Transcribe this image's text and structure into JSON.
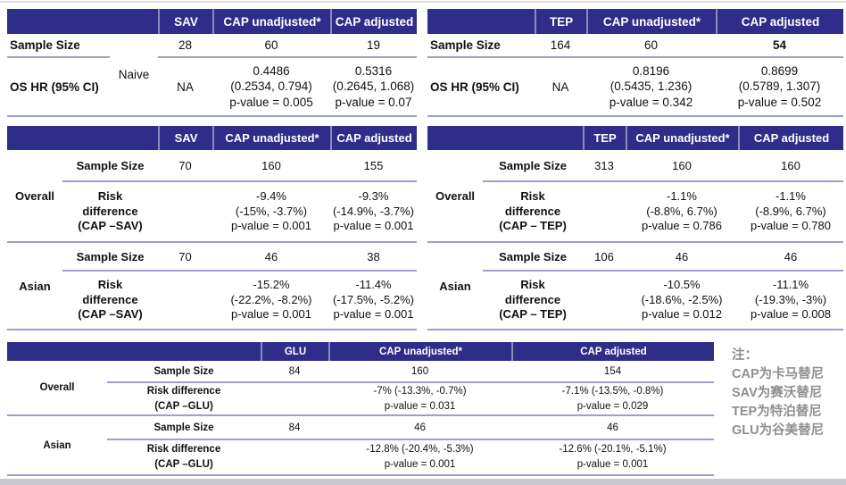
{
  "colors": {
    "header_bg": "#2e2d8a",
    "rule_line": "#9e9dcd",
    "note_text": "#8f8f8f",
    "bottom_bar": "#c8c8ce"
  },
  "naive_sav": {
    "col_headers": [
      "SAV",
      "CAP unadjusted*",
      "CAP adjusted"
    ],
    "sample_label": "Sample Size",
    "sample_values": [
      "28",
      "60",
      "19"
    ],
    "group_label": "Naive",
    "oshr_label": "OS HR (95% CI)",
    "oshr_values": [
      "NA",
      "0.4486\n(0.2534, 0.794)\np-value = 0.005",
      "0.5316\n(0.2645, 1.068)\np-value = 0.07"
    ]
  },
  "naive_tep": {
    "col_headers": [
      "TEP",
      "CAP unadjusted*",
      "CAP adjusted"
    ],
    "sample_label": "Sample Size",
    "sample_values": [
      "164",
      "60",
      "54"
    ],
    "oshr_label": "OS HR (95% CI)",
    "oshr_values": [
      "NA",
      "0.8196\n(0.5435, 1.236)\np-value = 0.342",
      "0.8699\n(0.5789, 1.307)\np-value = 0.502"
    ]
  },
  "risk_sav": {
    "col_headers": [
      "SAV",
      "CAP unadjusted*",
      "CAP adjusted"
    ],
    "sections": [
      {
        "group": "Overall",
        "sample_label": "Sample Size",
        "sample_values": [
          "70",
          "160",
          "155"
        ],
        "risk_label": "Risk\ndifference\n(CAP –SAV)",
        "risk_values": [
          "-9.4%\n(-15%, -3.7%)\np-value = 0.001",
          "-9.3%\n(-14.9%, -3.7%)\np-value = 0.001"
        ]
      },
      {
        "group": "Asian",
        "sample_label": "Sample Size",
        "sample_values": [
          "70",
          "46",
          "38"
        ],
        "risk_label": "Risk\ndifference\n(CAP –SAV)",
        "risk_values": [
          "-15.2%\n(-22.2%, -8.2%)\np-value = 0.001",
          "-11.4%\n(-17.5%, -5.2%)\np-value = 0.001"
        ]
      }
    ]
  },
  "risk_tep": {
    "col_headers": [
      "TEP",
      "CAP unadjusted*",
      "CAP adjusted"
    ],
    "sections": [
      {
        "group": "Overall",
        "sample_label": "Sample Size",
        "sample_values": [
          "313",
          "160",
          "160"
        ],
        "risk_label": "Risk\ndifference\n(CAP – TEP)",
        "risk_values": [
          "-1.1%\n(-8.8%, 6.7%)\np-value = 0.786",
          "-1.1%\n(-8.9%, 6.7%)\np-value = 0.780"
        ]
      },
      {
        "group": "Asian",
        "sample_label": "Sample Size",
        "sample_values": [
          "106",
          "46",
          "46"
        ],
        "risk_label": "Risk\ndifference\n(CAP – TEP)",
        "risk_values": [
          "-10.5%\n(-18.6%, -2.5%)\np-value = 0.012",
          "-11.1%\n(-19.3%, -3%)\np-value = 0.008"
        ]
      }
    ]
  },
  "risk_glu": {
    "col_headers": [
      "GLU",
      "CAP unadjusted*",
      "CAP adjusted"
    ],
    "sections": [
      {
        "group": "Overall",
        "sample_label": "Sample Size",
        "sample_values": [
          "84",
          "160",
          "154"
        ],
        "risk_label": "Risk difference\n(CAP –GLU)",
        "risk_values": [
          "-7% (-13.3%, -0.7%)\np-value = 0.031",
          "-7.1% (-13.5%, -0.8%)\np-value = 0.029"
        ]
      },
      {
        "group": "Asian",
        "sample_label": "Sample Size",
        "sample_values": [
          "84",
          "46",
          "46"
        ],
        "risk_label": "Risk difference\n(CAP –GLU)",
        "risk_values": [
          "-12.8% (-20.4%, -5.3%)\np-value = 0.001",
          "-12.6% (-20.1%, -5.1%)\np-value = 0.001"
        ]
      }
    ]
  },
  "note": {
    "title": "注：",
    "lines": [
      "CAP为卡马替尼",
      "SAV为赛沃替尼",
      "TEP为特泊替尼",
      "GLU为谷美替尼"
    ]
  }
}
